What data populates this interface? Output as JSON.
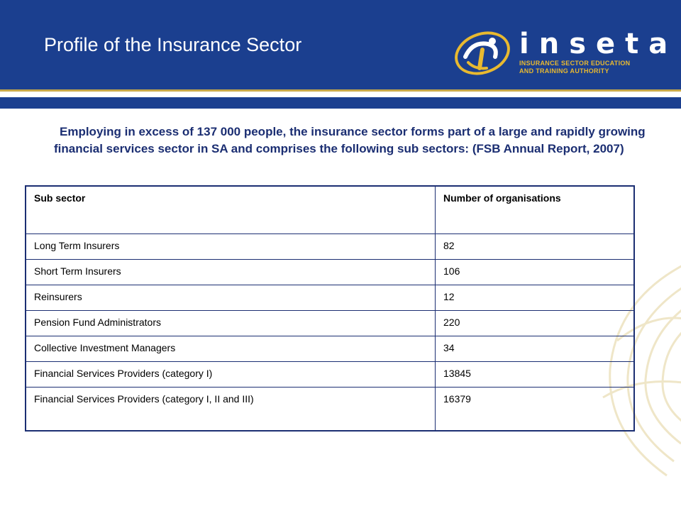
{
  "header": {
    "title": "Profile of the Insurance Sector",
    "logo": {
      "icon": "inseta-logo-icon",
      "word": "inseta",
      "tagline_line1": "INSURANCE SECTOR EDUCATION",
      "tagline_line2": "AND TRAINING AUTHORITY"
    }
  },
  "intro": "Employing in excess of 137 000 people, the insurance sector forms part of a large and rapidly growing financial services sector in SA and comprises the following sub sectors: (FSB Annual Report, 2007)",
  "table": {
    "headers": [
      "Sub sector",
      "Number of organisations"
    ],
    "rows": [
      [
        "Long Term Insurers",
        "82"
      ],
      [
        "Short Term Insurers",
        "106"
      ],
      [
        "Reinsurers",
        "12"
      ],
      [
        "Pension Fund Administrators",
        "220"
      ],
      [
        "Collective Investment Managers",
        "34"
      ],
      [
        "Financial Services Providers (category I)",
        "13845"
      ],
      [
        "Financial Services Providers (category I, II and III)",
        "16379"
      ]
    ]
  },
  "colors": {
    "header_blue": "#1b3f8f",
    "accent_gold": "#c9a94a",
    "text_navy": "#1b2e72"
  }
}
